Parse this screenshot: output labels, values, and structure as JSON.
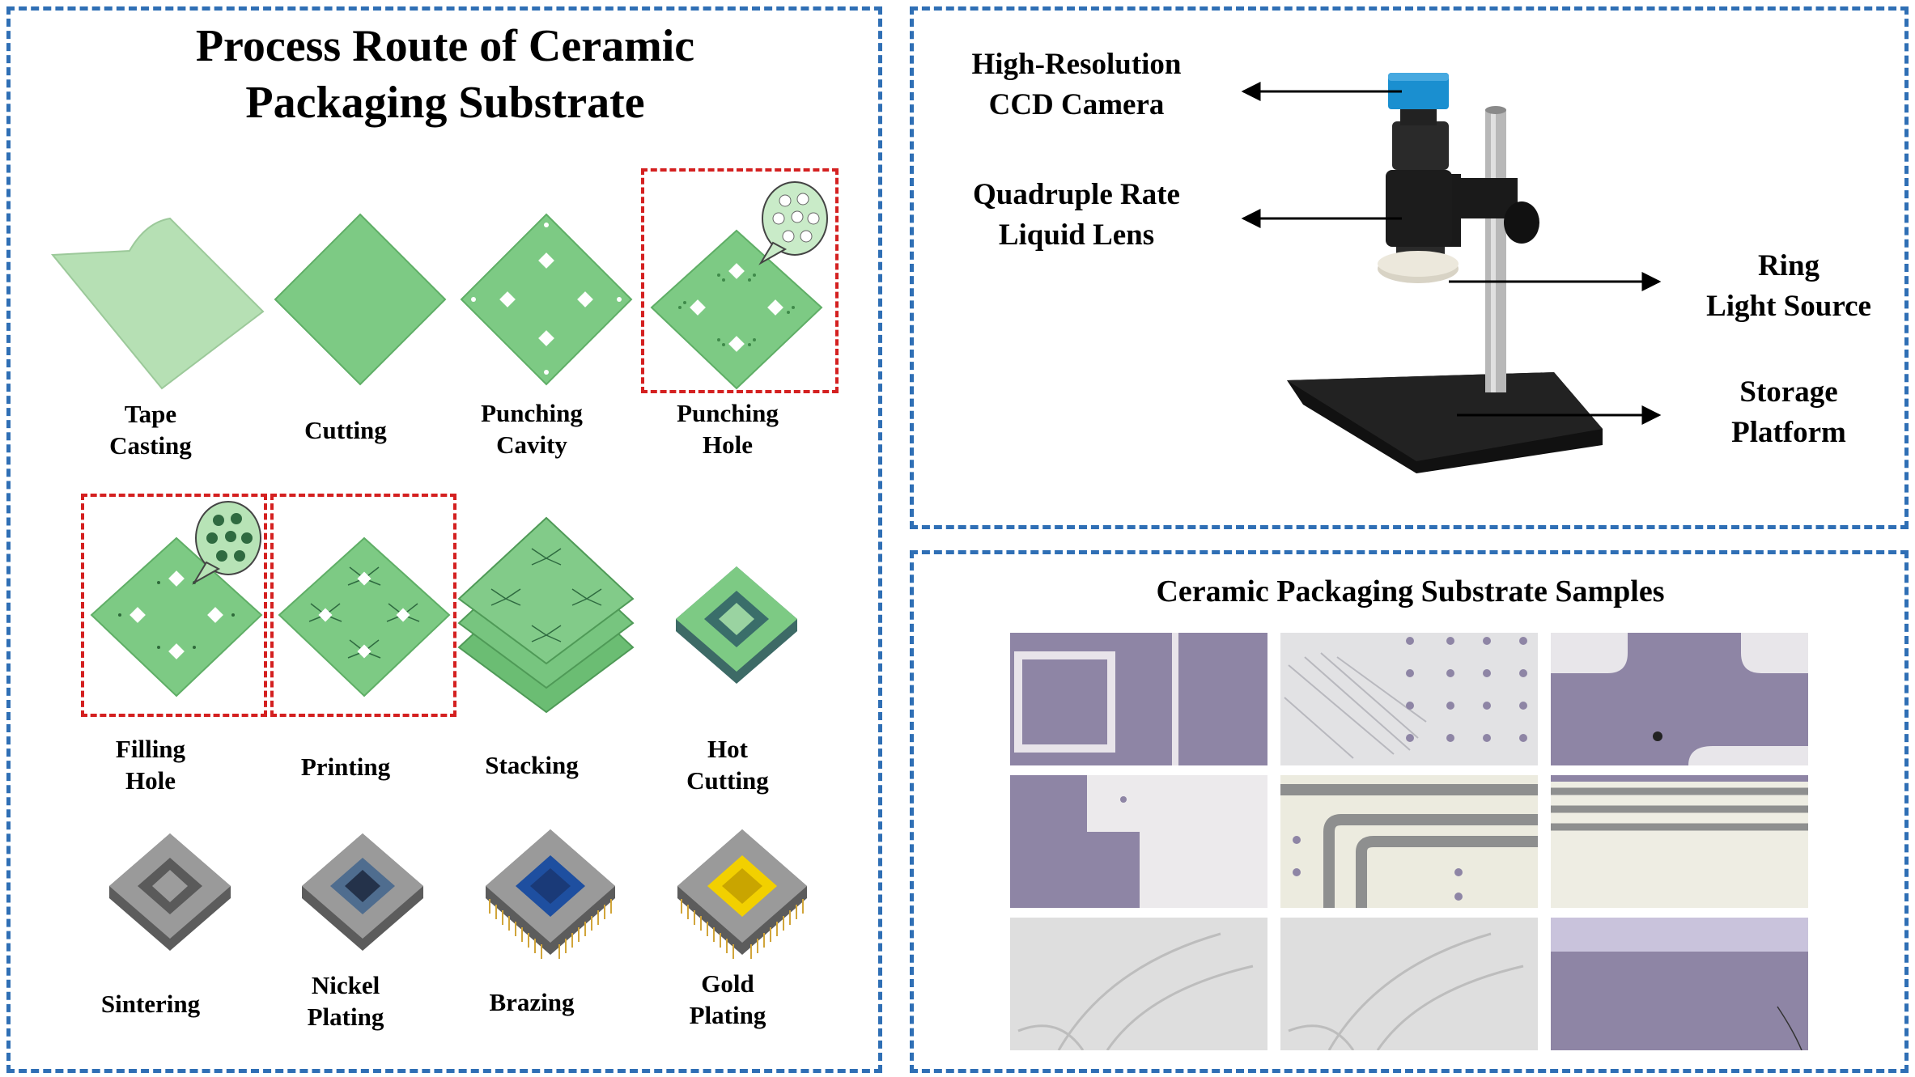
{
  "left_panel": {
    "title": "Process Route of Ceramic Packaging Substrate",
    "steps": [
      {
        "label_lines": [
          "Tape",
          "Casting"
        ]
      },
      {
        "label_lines": [
          "Cutting"
        ]
      },
      {
        "label_lines": [
          "Punching",
          "Cavity"
        ]
      },
      {
        "label_lines": [
          "Punching",
          "Hole"
        ]
      },
      {
        "label_lines": [
          "Filling",
          "Hole"
        ]
      },
      {
        "label_lines": [
          "Printing"
        ]
      },
      {
        "label_lines": [
          "Stacking"
        ]
      },
      {
        "label_lines": [
          "Hot",
          "Cutting"
        ]
      },
      {
        "label_lines": [
          "Sintering"
        ]
      },
      {
        "label_lines": [
          "Nickel",
          "Plating"
        ]
      },
      {
        "label_lines": [
          "Brazing"
        ]
      },
      {
        "label_lines": [
          "Gold",
          "Plating"
        ]
      }
    ],
    "highlighted_steps": [
      "Punching Hole",
      "Filling Hole",
      "Printing"
    ]
  },
  "setup_panel": {
    "labels": {
      "camera": [
        "High-Resolution",
        "CCD Camera"
      ],
      "lens": [
        "Quadruple Rate",
        "Liquid Lens"
      ],
      "ring": [
        "Ring",
        "Light Source"
      ],
      "platform": [
        "Storage",
        "Platform"
      ]
    }
  },
  "samples_panel": {
    "title": "Ceramic Packaging Substrate Samples",
    "sample_count": 9
  },
  "colors": {
    "panel_border": "#2f6fb5",
    "highlight_border": "#d42020",
    "green_tape": "#a9d8a8",
    "green_board": "#72c47a",
    "gray_board": "#8f8f8f",
    "sample_purple": "#8e85a5",
    "sample_light": "#e6e6e6"
  }
}
